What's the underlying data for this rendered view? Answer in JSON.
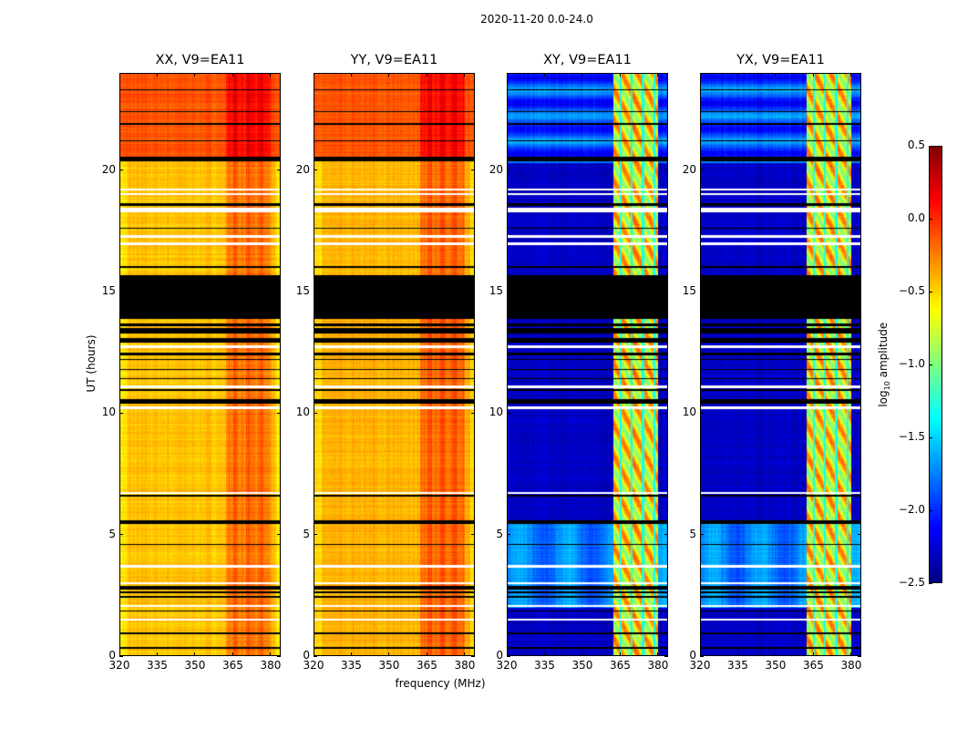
{
  "chart_data": {
    "type": "heatmap",
    "title": "2020-11-20 0.0-24.0",
    "xlabel": "frequency (MHz)",
    "ylabel": "UT (hours)",
    "xlim": [
      320,
      384
    ],
    "ylim": [
      0,
      24
    ],
    "xticks": [
      "320",
      "335",
      "350",
      "365",
      "380"
    ],
    "xtick_values": [
      320,
      335,
      350,
      365,
      380
    ],
    "yticks": [
      "0",
      "5",
      "10",
      "15",
      "20"
    ],
    "ytick_values": [
      0,
      5,
      10,
      15,
      20
    ],
    "panels": [
      {
        "title": "XX, V9=EA11",
        "kind": "parallel"
      },
      {
        "title": "YY, V9=EA11",
        "kind": "parallel"
      },
      {
        "title": "XY, V9=EA11",
        "kind": "cross"
      },
      {
        "title": "YX, V9=EA11",
        "kind": "cross"
      }
    ],
    "rfi_band_mhz": [
      362,
      380
    ],
    "flagged_black_ut": [
      [
        0.3,
        0.38
      ],
      [
        0.9,
        1.0
      ],
      [
        1.85,
        1.9
      ],
      [
        2.4,
        2.5
      ],
      [
        2.6,
        2.7
      ],
      [
        2.75,
        2.9
      ],
      [
        4.6,
        4.63
      ],
      [
        5.45,
        5.6
      ],
      [
        6.6,
        6.65
      ],
      [
        10.4,
        10.6
      ],
      [
        10.95,
        11.0
      ],
      [
        11.4,
        11.45
      ],
      [
        11.8,
        11.85
      ],
      [
        12.2,
        12.25
      ],
      [
        12.4,
        12.5
      ],
      [
        12.9,
        13.1
      ],
      [
        13.3,
        13.5
      ],
      [
        13.6,
        13.7
      ],
      [
        13.9,
        15.6
      ],
      [
        15.6,
        15.7
      ],
      [
        16.0,
        16.05
      ],
      [
        17.6,
        17.65
      ],
      [
        18.55,
        18.65
      ],
      [
        20.4,
        20.55
      ],
      [
        21.2,
        21.25
      ],
      [
        21.9,
        21.95
      ],
      [
        22.4,
        22.45
      ],
      [
        23.3,
        23.35
      ]
    ],
    "flagged_white_ut": [
      [
        1.5,
        1.55
      ],
      [
        2.05,
        2.12
      ],
      [
        3.0,
        3.05
      ],
      [
        3.65,
        3.75
      ],
      [
        6.7,
        6.75
      ],
      [
        10.2,
        10.3
      ],
      [
        11.05,
        11.15
      ],
      [
        12.7,
        12.8
      ],
      [
        16.95,
        17.05
      ],
      [
        17.25,
        17.35
      ],
      [
        18.3,
        18.45
      ],
      [
        19.0,
        19.05
      ],
      [
        19.2,
        19.25
      ]
    ],
    "colorbar": {
      "label_prefix": "log",
      "label_sub": "10",
      "label_suffix": " amplitude",
      "range": [
        -2.5,
        0.5
      ],
      "colormap": "jet",
      "ticks": [
        "0.5",
        "0.0",
        "−0.5",
        "−1.0",
        "−1.5",
        "−2.0",
        "−2.5"
      ],
      "tick_values": [
        0.5,
        0.0,
        -0.5,
        -1.0,
        -1.5,
        -2.0,
        -2.5
      ]
    }
  }
}
